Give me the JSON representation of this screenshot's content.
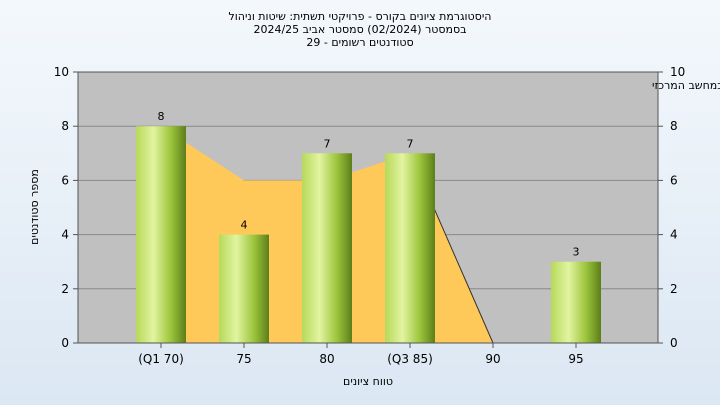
{
  "titles": {
    "line1": "היסטוגרמת ציונים בקורס - פרויקטי תשתית: שיטות וניהול",
    "line2": "בסמסטר  (02/2024)  סמסטר אביב 2024/25",
    "line3": "סטודנטים רשומים - 29"
  },
  "chart_data": {
    "type": "bar",
    "title": "היסטוגרמת ציונים בקורס - פרויקטי תשתית: שיטות וניהול",
    "annotation": "במשימה : ציון סופי במערכת האקדמית במחשב המרכזי",
    "categories": [
      "(Q1 70)",
      "75",
      "80",
      "(Q3 85)",
      "90",
      "95"
    ],
    "values": [
      8,
      4,
      7,
      7,
      0,
      3
    ],
    "area_values": [
      8,
      6,
      6,
      7,
      0,
      null
    ],
    "xlabel": "טווח ציונים",
    "ylabel": "מספר סטודנטים",
    "ylim": [
      0,
      10
    ],
    "yticks": [
      0,
      2,
      4,
      6,
      8,
      10
    ],
    "grid": true,
    "colors": {
      "bar_light": "#d4ec8a",
      "bar_mid": "#9cc43c",
      "bar_dark": "#5c7f1a",
      "area": "#ffc95a",
      "plot_bg": "#c0c0c0",
      "grid": "#8a8a8a"
    }
  }
}
